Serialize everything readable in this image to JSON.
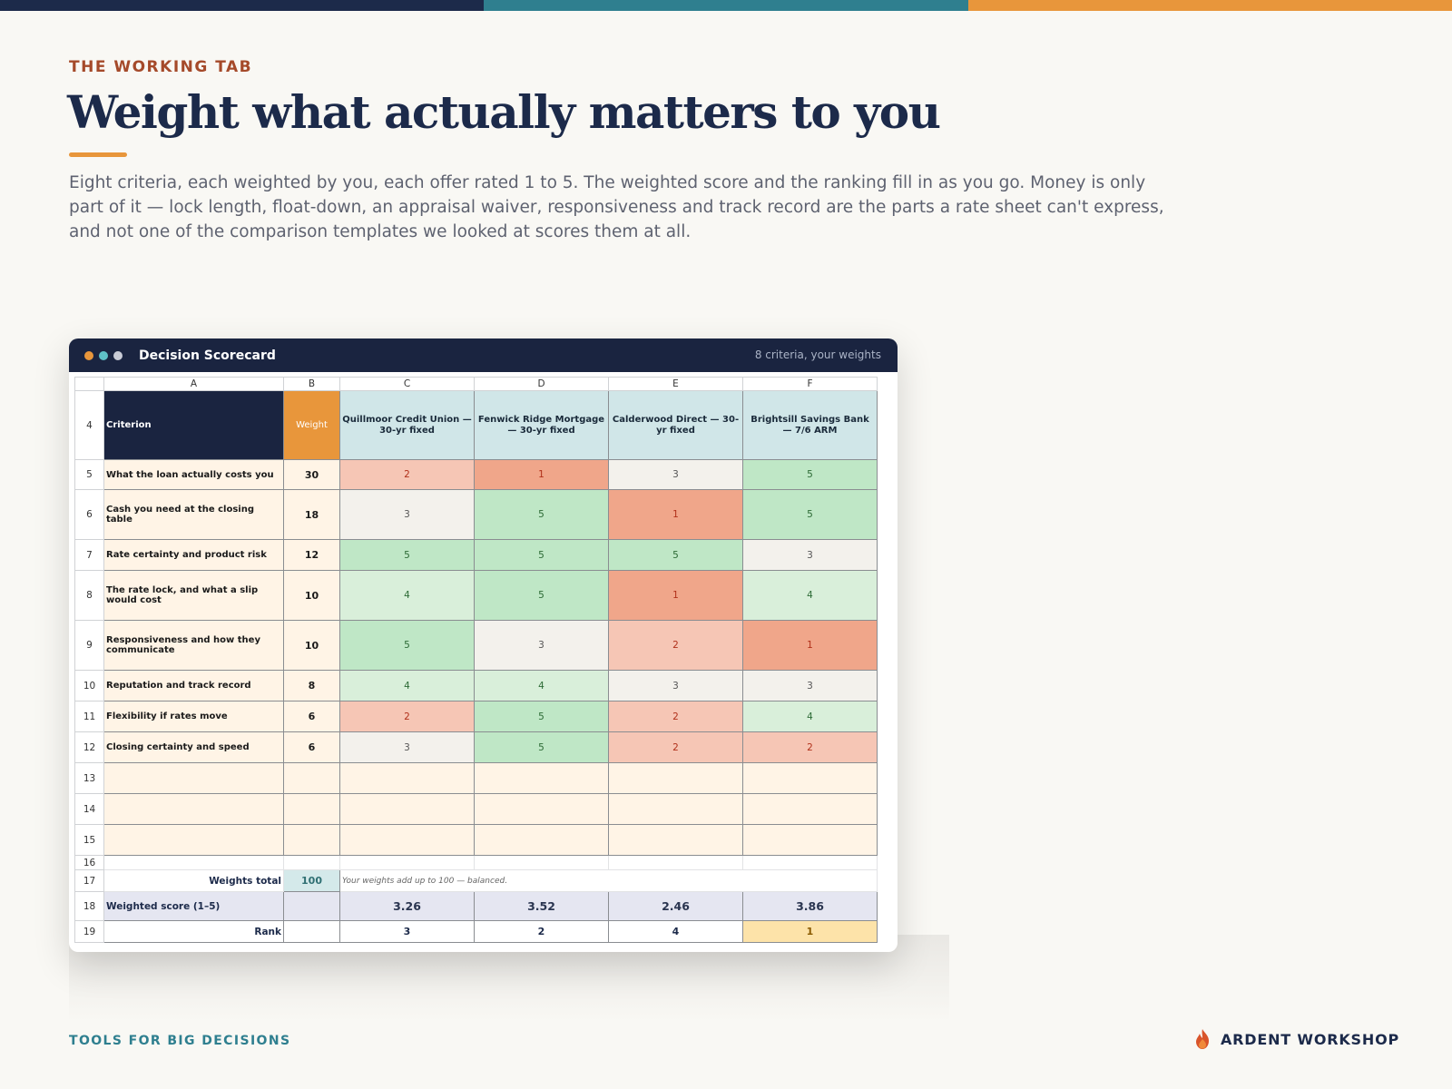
{
  "colors": {
    "navy": "#1a2440",
    "teal": "#2f7f8f",
    "orange": "#e8963b",
    "rust": "#a54a2a"
  },
  "eyebrow": "THE WORKING TAB",
  "headline": "Weight what actually matters to you",
  "lede": "Eight criteria, each weighted by you, each offer rated 1 to 5. The weighted score and the ranking fill in as you go. Money is only part of it — lock length, float-down, an appraisal waiver, responsiveness and track record are the parts a rate sheet can't express, and not one of the comparison templates we looked at scores them at all.",
  "window": {
    "title": "Decision Scorecard",
    "subtitle": "8 criteria, your weights",
    "dots": [
      "#e8963b",
      "#5fc1c8",
      "#c9ccd6"
    ]
  },
  "sheet": {
    "columns": [
      "A",
      "B",
      "C",
      "D",
      "E",
      "F"
    ],
    "header_row": "4",
    "criterion_header": "Criterion",
    "weight_header": "Weight",
    "offers": [
      "Quillmoor Credit Union — 30-yr fixed",
      "Fenwick Ridge Mortgage — 30-yr fixed",
      "Calderwood Direct — 30-yr fixed",
      "Brightsill Savings Bank — 7/6 ARM"
    ],
    "rows": [
      {
        "num": "5",
        "criterion": "What the loan actually costs you",
        "weight": "30",
        "scores": [
          "2",
          "1",
          "3",
          "5"
        ]
      },
      {
        "num": "6",
        "criterion": "Cash you need at the closing table",
        "weight": "18",
        "scores": [
          "3",
          "5",
          "1",
          "5"
        ]
      },
      {
        "num": "7",
        "criterion": "Rate certainty and product risk",
        "weight": "12",
        "scores": [
          "5",
          "5",
          "5",
          "3"
        ]
      },
      {
        "num": "8",
        "criterion": "The rate lock, and what a slip would cost",
        "weight": "10",
        "scores": [
          "4",
          "5",
          "1",
          "4"
        ]
      },
      {
        "num": "9",
        "criterion": "Responsiveness and how they communicate",
        "weight": "10",
        "scores": [
          "5",
          "3",
          "2",
          "1"
        ]
      },
      {
        "num": "10",
        "criterion": "Reputation and track record",
        "weight": "8",
        "scores": [
          "4",
          "4",
          "3",
          "3"
        ]
      },
      {
        "num": "11",
        "criterion": "Flexibility if rates move",
        "weight": "6",
        "scores": [
          "2",
          "5",
          "2",
          "4"
        ]
      },
      {
        "num": "12",
        "criterion": "Closing certainty and speed",
        "weight": "6",
        "scores": [
          "3",
          "5",
          "2",
          "2"
        ]
      }
    ],
    "empty_rows": [
      "13",
      "14",
      "15"
    ],
    "spacer_row": "16",
    "weights_total": {
      "num": "17",
      "label": "Weights total",
      "value": "100",
      "note": "Your weights add up to 100 — balanced."
    },
    "weighted_score": {
      "num": "18",
      "label": "Weighted score (1–5)",
      "values": [
        "3.26",
        "3.52",
        "2.46",
        "3.86"
      ]
    },
    "rank": {
      "num": "19",
      "label": "Rank",
      "values": [
        "3",
        "2",
        "4",
        "1"
      ],
      "best": "1"
    },
    "score_colors": {
      "1": {
        "bg": "#f0a68a",
        "fg": "#b0301a"
      },
      "2": {
        "bg": "#f6c6b5",
        "fg": "#b0301a"
      },
      "3": {
        "bg": "#f3f1ec",
        "fg": "#555555"
      },
      "4": {
        "bg": "#d9efda",
        "fg": "#2c6a35"
      },
      "5": {
        "bg": "#bfe7c6",
        "fg": "#2c6a35"
      }
    }
  },
  "footer": {
    "left": "TOOLS FOR BIG DECISIONS",
    "brand": "ARDENT WORKSHOP",
    "brand_icon": "flame-icon"
  }
}
